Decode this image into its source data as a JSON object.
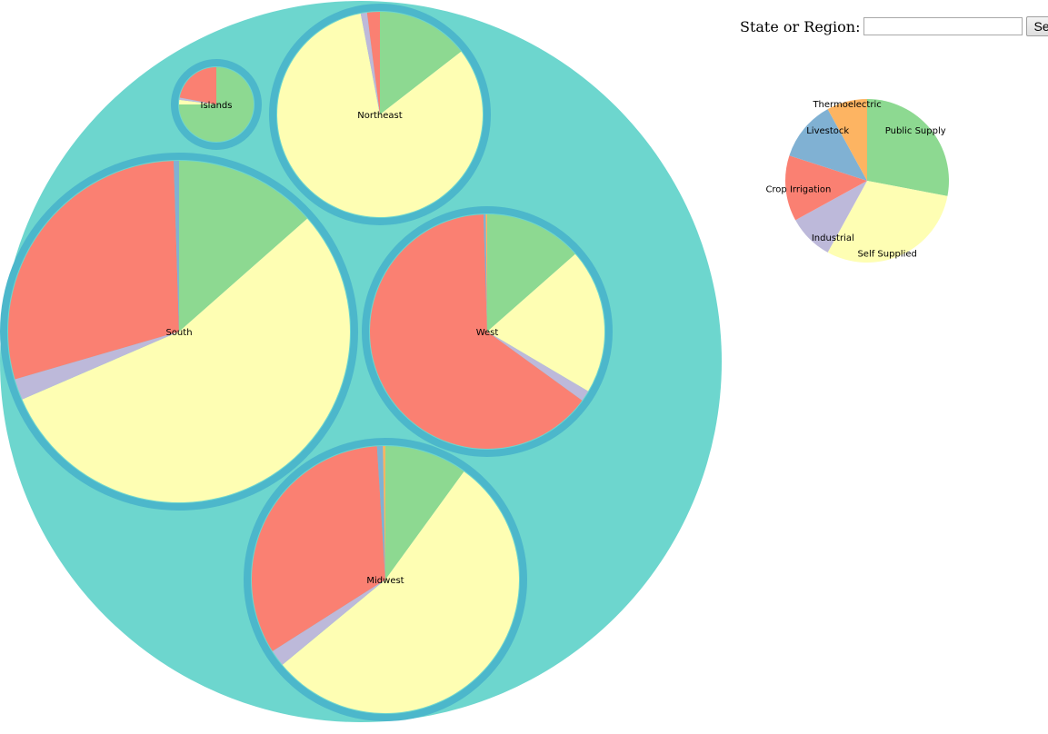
{
  "search": {
    "label": "State or Region:",
    "value": "",
    "placeholder": "",
    "button_label": "Search"
  },
  "colors": {
    "root_fill": "#6dd6ce",
    "region_ring": "#4cb7cb",
    "public_supply": "#8dd991",
    "self_supplied": "#fefeb3",
    "industrial": "#bdb9da",
    "crop_irrigation": "#fa8072",
    "livestock": "#80b1d3",
    "thermoelectric": "#fdb462"
  },
  "chart_data": {
    "type": "pie",
    "legend": {
      "categories": [
        "Public Supply",
        "Self Supplied",
        "Industrial",
        "Crop Irrigation",
        "Livestock",
        "Thermoelectric"
      ],
      "values": [
        28,
        30,
        9,
        13,
        12,
        8
      ]
    },
    "regions": [
      {
        "name": "Islands",
        "categories": [
          "Public Supply",
          "Self Supplied",
          "Industrial",
          "Crop Irrigation",
          "Livestock",
          "Thermoelectric"
        ],
        "values": [
          75,
          2,
          1,
          22,
          0,
          0
        ]
      },
      {
        "name": "Northeast",
        "categories": [
          "Public Supply",
          "Self Supplied",
          "Industrial",
          "Crop Irrigation",
          "Livestock",
          "Thermoelectric"
        ],
        "values": [
          14.5,
          82.5,
          1,
          2,
          0,
          0
        ]
      },
      {
        "name": "South",
        "categories": [
          "Public Supply",
          "Self Supplied",
          "Industrial",
          "Crop Irrigation",
          "Livestock",
          "Thermoelectric"
        ],
        "values": [
          13.5,
          55,
          2,
          29,
          0.5,
          0
        ]
      },
      {
        "name": "West",
        "categories": [
          "Public Supply",
          "Self Supplied",
          "Industrial",
          "Crop Irrigation",
          "Livestock",
          "Thermoelectric"
        ],
        "values": [
          13.5,
          20,
          1.5,
          64.5,
          0.3,
          0.2
        ]
      },
      {
        "name": "Midwest",
        "categories": [
          "Public Supply",
          "Self Supplied",
          "Industrial",
          "Crop Irrigation",
          "Livestock",
          "Thermoelectric"
        ],
        "values": [
          10,
          54,
          2,
          33,
          0.7,
          0.3
        ]
      }
    ]
  }
}
